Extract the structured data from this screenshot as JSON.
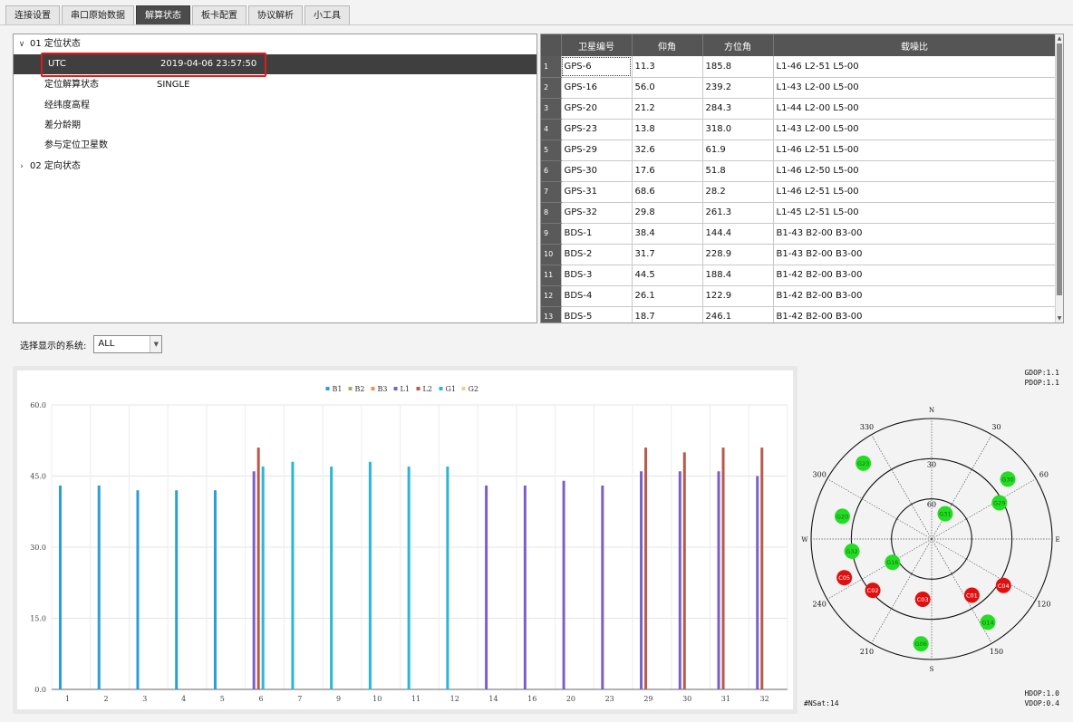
{
  "tabs": [
    {
      "label": "连接设置",
      "active": false
    },
    {
      "label": "串口原始数据",
      "active": false
    },
    {
      "label": "解算状态",
      "active": true
    },
    {
      "label": "板卡配置",
      "active": false
    },
    {
      "label": "协议解析",
      "active": false
    },
    {
      "label": "小工具",
      "active": false
    }
  ],
  "tree": {
    "node1": {
      "chevron": "∨",
      "label": "01 定位状态"
    },
    "rows": [
      {
        "key": "UTC",
        "value": "2019-04-06 23:57:50",
        "selected": true
      },
      {
        "key": "定位解算状态",
        "value": "SINGLE",
        "selected": false
      },
      {
        "key": "经纬度高程",
        "value": "",
        "selected": false
      },
      {
        "key": "差分龄期",
        "value": "",
        "selected": false
      },
      {
        "key": "参与定位卫星数",
        "value": "",
        "selected": false
      }
    ],
    "node2": {
      "chevron": "›",
      "label": "02 定向状态"
    }
  },
  "sat_table": {
    "headers": [
      "卫星编号",
      "仰角",
      "方位角",
      "载噪比"
    ],
    "rows": [
      {
        "n": "1",
        "id": "GPS-6",
        "el": "11.3",
        "az": "185.8",
        "snr": "L1-46 L2-51 L5-00"
      },
      {
        "n": "2",
        "id": "GPS-16",
        "el": "56.0",
        "az": "239.2",
        "snr": "L1-43 L2-00 L5-00"
      },
      {
        "n": "3",
        "id": "GPS-20",
        "el": "21.2",
        "az": "284.3",
        "snr": "L1-44 L2-00 L5-00"
      },
      {
        "n": "4",
        "id": "GPS-23",
        "el": "13.8",
        "az": "318.0",
        "snr": "L1-43 L2-00 L5-00"
      },
      {
        "n": "5",
        "id": "GPS-29",
        "el": "32.6",
        "az": "61.9",
        "snr": "L1-46 L2-51 L5-00"
      },
      {
        "n": "6",
        "id": "GPS-30",
        "el": "17.6",
        "az": "51.8",
        "snr": "L1-46 L2-50 L5-00"
      },
      {
        "n": "7",
        "id": "GPS-31",
        "el": "68.6",
        "az": "28.2",
        "snr": "L1-46 L2-51 L5-00"
      },
      {
        "n": "8",
        "id": "GPS-32",
        "el": "29.8",
        "az": "261.3",
        "snr": "L1-45 L2-51 L5-00"
      },
      {
        "n": "9",
        "id": "BDS-1",
        "el": "38.4",
        "az": "144.4",
        "snr": "B1-43 B2-00 B3-00"
      },
      {
        "n": "10",
        "id": "BDS-2",
        "el": "31.7",
        "az": "228.9",
        "snr": "B1-43 B2-00 B3-00"
      },
      {
        "n": "11",
        "id": "BDS-3",
        "el": "44.5",
        "az": "188.4",
        "snr": "B1-42 B2-00 B3-00"
      },
      {
        "n": "12",
        "id": "BDS-4",
        "el": "26.1",
        "az": "122.9",
        "snr": "B1-42 B2-00 B3-00"
      },
      {
        "n": "13",
        "id": "BDS-5",
        "el": "18.7",
        "az": "246.1",
        "snr": "B1-42 B2-00 B3-00"
      }
    ]
  },
  "system_select": {
    "label": "选择显示的系统:",
    "value": "ALL",
    "arrow": "▼"
  },
  "chart_data": {
    "type": "bar",
    "title": "",
    "xlabel": "",
    "ylabel": "",
    "ylim": [
      0,
      60
    ],
    "yticks": [
      "60.0",
      "45.0",
      "30.0",
      "15.0",
      "0.0"
    ],
    "ytick_values": [
      60,
      45,
      30,
      15,
      0
    ],
    "grid": true,
    "legend_position": "top",
    "categories": [
      "1",
      "2",
      "3",
      "4",
      "5",
      "6",
      "7",
      "9",
      "10",
      "11",
      "12",
      "14",
      "16",
      "20",
      "23",
      "29",
      "30",
      "31",
      "32"
    ],
    "series": [
      {
        "name": "B1",
        "color": "#2a9fd6",
        "values": [
          43,
          43,
          42,
          42,
          42,
          0,
          0,
          0,
          0,
          0,
          0,
          0,
          0,
          0,
          0,
          0,
          0,
          0,
          0
        ]
      },
      {
        "name": "B2",
        "color": "#9ab65a",
        "values": [
          0,
          0,
          0,
          0,
          0,
          0,
          0,
          0,
          0,
          0,
          0,
          0,
          0,
          0,
          0,
          0,
          0,
          0,
          0
        ]
      },
      {
        "name": "B3",
        "color": "#e8944e",
        "values": [
          0,
          0,
          0,
          0,
          0,
          0,
          0,
          0,
          0,
          0,
          0,
          0,
          0,
          0,
          0,
          0,
          0,
          0,
          0
        ]
      },
      {
        "name": "L1",
        "color": "#7b5fc7",
        "values": [
          0,
          0,
          0,
          0,
          0,
          46,
          0,
          0,
          0,
          0,
          0,
          43,
          43,
          44,
          43,
          46,
          46,
          46,
          45
        ]
      },
      {
        "name": "L2",
        "color": "#b85a4a",
        "values": [
          0,
          0,
          0,
          0,
          0,
          51,
          0,
          0,
          0,
          0,
          0,
          0,
          0,
          0,
          0,
          51,
          50,
          51,
          51
        ]
      },
      {
        "name": "G1",
        "color": "#2ab6d6",
        "values": [
          0,
          0,
          0,
          0,
          0,
          47,
          48,
          47,
          48,
          47,
          47,
          0,
          0,
          0,
          0,
          0,
          0,
          0,
          0
        ]
      },
      {
        "name": "G2",
        "color": "#f0d08a",
        "values": [
          0,
          0,
          0,
          0,
          0,
          0,
          0,
          0,
          0,
          0,
          0,
          0,
          0,
          0,
          0,
          0,
          0,
          0,
          0
        ]
      }
    ]
  },
  "skyplot": {
    "gdop": "GDOP:1.1",
    "pdop": "PDOP:1.1",
    "hdop": "HDOP:1.0",
    "vdop": "VDOP:0.4",
    "nsat": "#NSat:14",
    "directions": {
      "n": "N",
      "e": "E",
      "s": "S",
      "w": "W"
    },
    "azimuth_labels": [
      {
        "text": "30",
        "az": 30
      },
      {
        "text": "60",
        "az": 60
      },
      {
        "text": "120",
        "az": 120
      },
      {
        "text": "150",
        "az": 150
      },
      {
        "text": "210",
        "az": 210
      },
      {
        "text": "240",
        "az": 240
      },
      {
        "text": "300",
        "az": 300
      },
      {
        "text": "330",
        "az": 330
      }
    ],
    "elevation_labels": [
      {
        "text": "30",
        "el": 30
      },
      {
        "text": "60",
        "el": 60
      }
    ],
    "green_color": "#22dd22",
    "red_color": "#e01010",
    "satellites": [
      {
        "label": "G06",
        "az": 185.8,
        "el": 11.3,
        "sys": "gps"
      },
      {
        "label": "G16",
        "az": 239.2,
        "el": 56.0,
        "sys": "gps"
      },
      {
        "label": "G20",
        "az": 284.3,
        "el": 21.2,
        "sys": "gps"
      },
      {
        "label": "G23",
        "az": 318.0,
        "el": 13.8,
        "sys": "gps"
      },
      {
        "label": "G29",
        "az": 61.9,
        "el": 32.6,
        "sys": "gps"
      },
      {
        "label": "G30",
        "az": 51.8,
        "el": 17.6,
        "sys": "gps"
      },
      {
        "label": "G31",
        "az": 28.2,
        "el": 68.6,
        "sys": "gps"
      },
      {
        "label": "G32",
        "az": 261.3,
        "el": 29.8,
        "sys": "gps"
      },
      {
        "label": "G14",
        "az": 146,
        "el": 15,
        "sys": "gps"
      },
      {
        "label": "C01",
        "az": 144.4,
        "el": 38.4,
        "sys": "bds"
      },
      {
        "label": "C02",
        "az": 228.9,
        "el": 31.7,
        "sys": "bds"
      },
      {
        "label": "C03",
        "az": 188.4,
        "el": 44.5,
        "sys": "bds"
      },
      {
        "label": "C04",
        "az": 122.9,
        "el": 26.1,
        "sys": "bds"
      },
      {
        "label": "C05",
        "az": 246.1,
        "el": 18.7,
        "sys": "bds"
      }
    ]
  }
}
